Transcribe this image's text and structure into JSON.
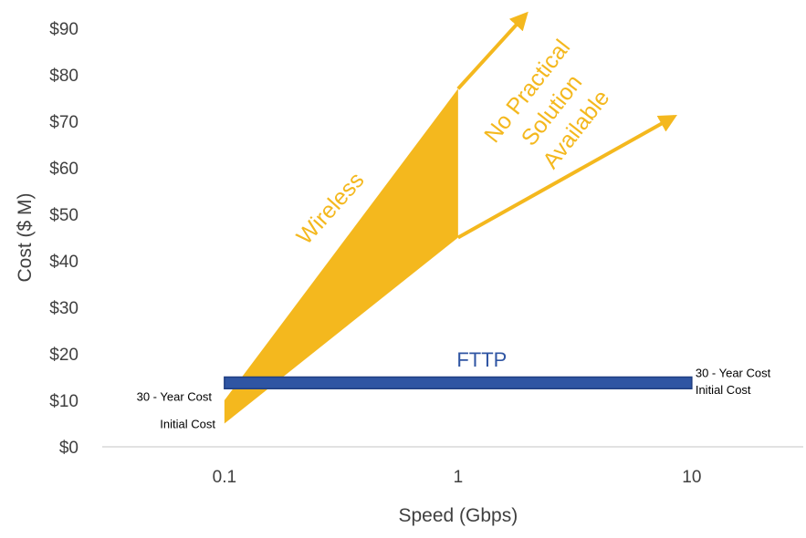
{
  "chart_data": {
    "type": "area",
    "xlabel": "Speed (Gbps)",
    "ylabel": "Cost ($ M)",
    "x_scale": "log",
    "xlim": [
      0.03,
      30
    ],
    "ylim": [
      0,
      90
    ],
    "x_ticks": [
      0.1,
      1,
      10
    ],
    "x_tick_labels": [
      "0.1",
      "1",
      "10"
    ],
    "y_ticks": [
      0,
      10,
      20,
      30,
      40,
      50,
      60,
      70,
      80,
      90
    ],
    "y_tick_labels": [
      "$0",
      "$10",
      "$20",
      "$30",
      "$40",
      "$50",
      "$60",
      "$70",
      "$80",
      "$90"
    ],
    "grid": "baseline only",
    "series": [
      {
        "name": "Wireless",
        "color": "#F4B81E",
        "x": [
          0.1,
          1
        ],
        "y_initial": [
          5,
          45
        ],
        "y_30_year": [
          10,
          77
        ]
      },
      {
        "name": "FTTP",
        "color": "#2F55A3",
        "x": [
          0.1,
          10
        ],
        "y_initial": [
          12.5,
          12.5
        ],
        "y_30_year": [
          15,
          15
        ]
      }
    ],
    "annotations": {
      "no_solution_lines": [
        "No Practical",
        "Solution",
        "Available"
      ],
      "left_30_year": "30 - Year Cost",
      "left_initial": "Initial Cost",
      "right_30_year": "30 - Year Cost",
      "right_initial": "Initial Cost"
    },
    "arrows": [
      {
        "from": [
          1,
          77
        ],
        "to": [
          1.95,
          93
        ]
      },
      {
        "from": [
          1,
          45
        ],
        "to": [
          8.4,
          71
        ]
      }
    ]
  }
}
